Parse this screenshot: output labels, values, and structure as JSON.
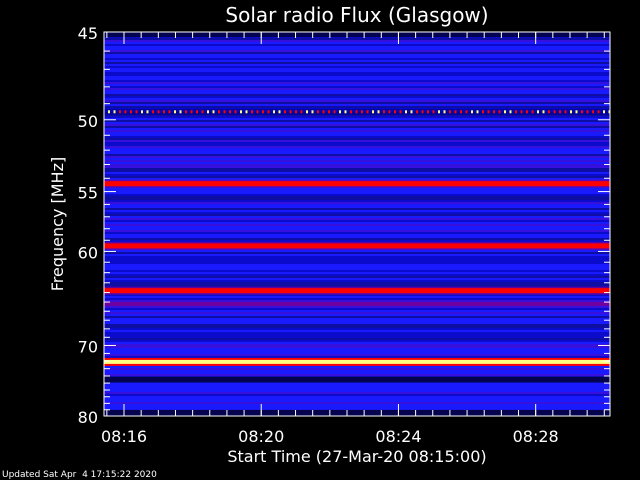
{
  "chart_data": {
    "type": "heatmap",
    "title": "Solar radio Flux (Glasgow)",
    "xlabel": "Start Time (27-Mar-20 08:15:00)",
    "ylabel": "Frequency [MHz]",
    "footer": "Updated Sat Apr  4 17:15:22 2020",
    "x_unit": "minutes",
    "xlim": [
      "08:15:25",
      "08:30:10"
    ],
    "x_ticks": [
      "08:16",
      "08:20",
      "08:24",
      "08:28"
    ],
    "ylim": [
      45,
      80
    ],
    "y_scale": "reciprocal",
    "y_ticks": [
      45,
      50,
      55,
      60,
      70,
      80
    ],
    "colorscale": [
      "#000030",
      "#0000a0",
      "#0020ff",
      "#7000a0",
      "#ff0000",
      "#ffff80"
    ],
    "background_color": "#1a1aff",
    "bands": [
      {
        "freq_mhz": 45.1,
        "level": "dark"
      },
      {
        "freq_mhz": 49.5,
        "level": "dotted-bright"
      },
      {
        "freq_mhz": 54.4,
        "level": "red"
      },
      {
        "freq_mhz": 59.5,
        "level": "red"
      },
      {
        "freq_mhz": 63.8,
        "level": "red"
      },
      {
        "freq_mhz": 65.2,
        "level": "purple"
      },
      {
        "freq_mhz": 72.1,
        "level": "yellow-white"
      },
      {
        "freq_mhz": 74.5,
        "level": "dark"
      },
      {
        "freq_mhz": 79.5,
        "level": "dark"
      }
    ]
  }
}
